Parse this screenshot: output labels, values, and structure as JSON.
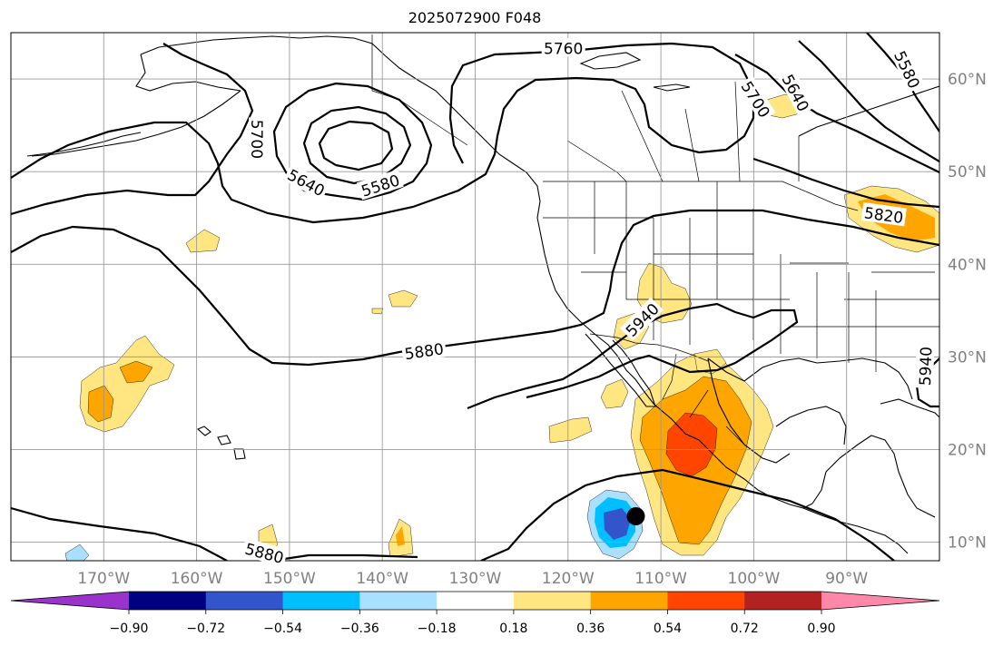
{
  "title": "2025072900 F048",
  "colors": {
    "land_lines": "#000000",
    "grid": "#9a9a9a",
    "tick_labels": "#808080"
  },
  "map": {
    "lon_range": [
      -180,
      -80
    ],
    "lat_range": [
      8,
      65
    ],
    "lon_ticks": [
      {
        "lon": -170,
        "label": "170°W"
      },
      {
        "lon": -160,
        "label": "160°W"
      },
      {
        "lon": -150,
        "label": "150°W"
      },
      {
        "lon": -140,
        "label": "140°W"
      },
      {
        "lon": -130,
        "label": "130°W"
      },
      {
        "lon": -120,
        "label": "120°W"
      },
      {
        "lon": -110,
        "label": "110°W"
      },
      {
        "lon": -100,
        "label": "100°W"
      },
      {
        "lon": -90,
        "label": "90°W"
      }
    ],
    "lat_ticks": [
      {
        "lat": 60,
        "label": "60°N"
      },
      {
        "lat": 50,
        "label": "50°N"
      },
      {
        "lat": 40,
        "label": "40°N"
      },
      {
        "lat": 30,
        "label": "30°N"
      },
      {
        "lat": 20,
        "label": "20°N"
      },
      {
        "lat": 10,
        "label": "10°N"
      }
    ]
  },
  "contour_labels": [
    {
      "text": "5760",
      "lon": -120.5,
      "lat": 63.3,
      "rot": 0
    },
    {
      "text": "5700",
      "lon": -153.5,
      "lat": 53.5,
      "rot": 90
    },
    {
      "text": "5640",
      "lon": -148.2,
      "lat": 48.8,
      "rot": 28
    },
    {
      "text": "5580",
      "lon": -140.2,
      "lat": 48.5,
      "rot": -18
    },
    {
      "text": "5700",
      "lon": -99.8,
      "lat": 57.8,
      "rot": 58
    },
    {
      "text": "5640",
      "lon": -95.5,
      "lat": 58.5,
      "rot": 62
    },
    {
      "text": "5580",
      "lon": -83.5,
      "lat": 61.0,
      "rot": 65
    },
    {
      "text": "5820",
      "lon": -86.0,
      "lat": 45.3,
      "rot": 8
    },
    {
      "text": "5940",
      "lon": -112.0,
      "lat": 34.0,
      "rot": -45
    },
    {
      "text": "5880",
      "lon": -135.5,
      "lat": 30.6,
      "rot": -8
    },
    {
      "text": "5940",
      "lon": -81.5,
      "lat": 29.0,
      "rot": -88
    },
    {
      "text": "5880",
      "lon": -152.7,
      "lat": 8.8,
      "rot": 15
    }
  ],
  "colorbar": {
    "ticks": [
      "−0.90",
      "−0.72",
      "−0.54",
      "−0.36",
      "−0.18",
      "0.18",
      "0.36",
      "0.54",
      "0.72",
      "0.90"
    ],
    "colors": [
      "#9933cc",
      "#000080",
      "#3355cc",
      "#00bfff",
      "#aae0ff",
      "#ffffff",
      "#ffe680",
      "#ffa500",
      "#ff4500",
      "#b22222",
      "#ff88aa"
    ],
    "extend": "both"
  },
  "marker": {
    "lon": -112.7,
    "lat": 12.8,
    "color": "#000000"
  }
}
